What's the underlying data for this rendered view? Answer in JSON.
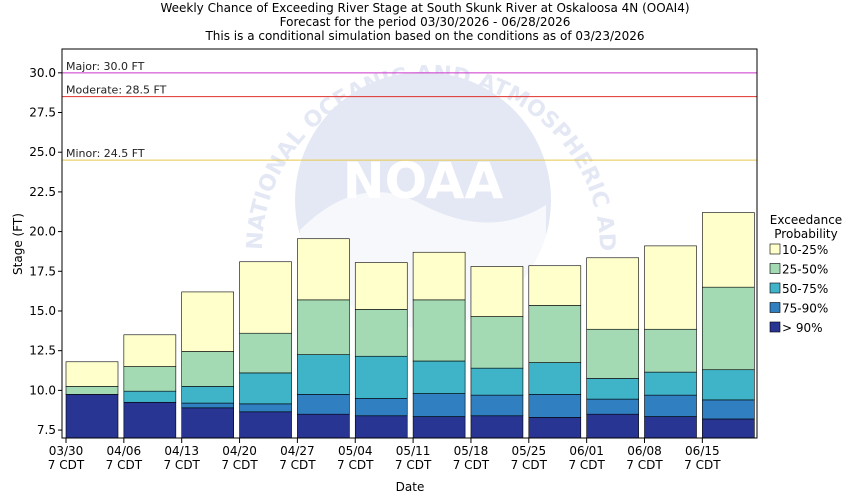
{
  "title": {
    "line1": "Weekly Chance of Exceeding River Stage at South Skunk River at Oskaloosa 4N (OOAI4)",
    "line2": "Forecast for the period 03/30/2026 - 06/28/2026",
    "line3": "This is a conditional simulation based on the conditions as of 03/23/2026"
  },
  "watermark": {
    "text": "NATIONAL OCEANIC AND ATMOSPHERIC ADMINISTRATION",
    "logo": "NOAA"
  },
  "chart_data": {
    "type": "bar",
    "subtype": "stacked-floating",
    "xlabel": "Date",
    "ylabel": "Stage (FT)",
    "ylim": [
      7.0,
      31.5
    ],
    "yticks": [
      "7.5",
      "10.0",
      "12.5",
      "15.0",
      "17.5",
      "20.0",
      "22.5",
      "25.0",
      "27.5",
      "30.0"
    ],
    "grid": false,
    "legend_position": "right",
    "legend_title": [
      "Exceedance",
      "Probability"
    ],
    "x_ticks": [
      {
        "date": "03/30",
        "tz": "7 CDT"
      },
      {
        "date": "04/06",
        "tz": "7 CDT"
      },
      {
        "date": "04/13",
        "tz": "7 CDT"
      },
      {
        "date": "04/20",
        "tz": "7 CDT"
      },
      {
        "date": "04/27",
        "tz": "7 CDT"
      },
      {
        "date": "05/04",
        "tz": "7 CDT"
      },
      {
        "date": "05/11",
        "tz": "7 CDT"
      },
      {
        "date": "05/18",
        "tz": "7 CDT"
      },
      {
        "date": "05/25",
        "tz": "7 CDT"
      },
      {
        "date": "06/01",
        "tz": "7 CDT"
      },
      {
        "date": "06/08",
        "tz": "7 CDT"
      },
      {
        "date": "06/15",
        "tz": "7 CDT"
      }
    ],
    "series": [
      {
        "name": "> 90%",
        "color": "#283593"
      },
      {
        "name": "75-90%",
        "color": "#2f7fc1"
      },
      {
        "name": "50-75%",
        "color": "#3fb3c8"
      },
      {
        "name": "25-50%",
        "color": "#a3dab4"
      },
      {
        "name": "10-25%",
        "color": "#ffffcc"
      }
    ],
    "weeks": [
      {
        "bounds": [
          9.75,
          9.75,
          9.75,
          10.25,
          11.8
        ]
      },
      {
        "bounds": [
          9.25,
          9.25,
          9.95,
          11.5,
          13.5
        ]
      },
      {
        "bounds": [
          8.9,
          9.2,
          10.25,
          12.45,
          16.2
        ]
      },
      {
        "bounds": [
          8.65,
          9.15,
          11.1,
          13.6,
          18.1
        ]
      },
      {
        "bounds": [
          8.5,
          9.75,
          12.25,
          15.7,
          19.55
        ]
      },
      {
        "bounds": [
          8.4,
          9.5,
          12.15,
          15.1,
          18.05
        ]
      },
      {
        "bounds": [
          8.35,
          9.8,
          11.85,
          15.7,
          18.7
        ]
      },
      {
        "bounds": [
          8.4,
          9.7,
          11.4,
          14.65,
          17.8
        ]
      },
      {
        "bounds": [
          8.3,
          9.75,
          11.75,
          15.35,
          17.85
        ]
      },
      {
        "bounds": [
          8.5,
          9.45,
          10.75,
          13.85,
          18.35
        ]
      },
      {
        "bounds": [
          8.35,
          9.7,
          11.15,
          13.85,
          19.1
        ]
      },
      {
        "bounds": [
          8.2,
          9.4,
          11.3,
          16.5,
          21.2
        ]
      }
    ],
    "flood_levels": [
      {
        "label": "Major: 30.0 FT",
        "value": 30.0,
        "color": "#cc33cc"
      },
      {
        "label": "Moderate: 28.5 FT",
        "value": 28.5,
        "color": "#e0302a"
      },
      {
        "label": "Minor: 24.5 FT",
        "value": 24.5,
        "color": "#e8c84a"
      }
    ]
  }
}
